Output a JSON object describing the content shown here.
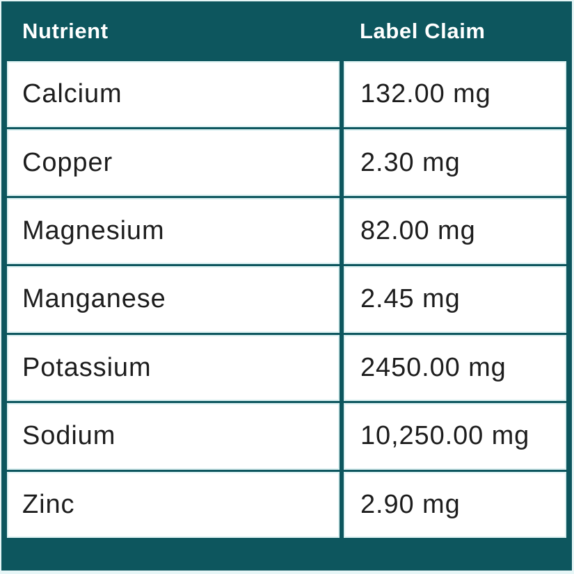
{
  "colors": {
    "teal": "#0d565e",
    "row_background": "#ffffff",
    "header_text": "#ffffff",
    "body_text": "#1d1d1d",
    "page_margin": "#e7f6f7",
    "cell_inner_highlight": "#dcf1f2"
  },
  "table": {
    "columns": [
      {
        "label": "Nutrient"
      },
      {
        "label": "Label Claim"
      }
    ],
    "rows": [
      {
        "nutrient": "Calcium",
        "claim": "132.00 mg"
      },
      {
        "nutrient": "Copper",
        "claim": "2.30 mg"
      },
      {
        "nutrient": "Magnesium",
        "claim": "82.00 mg"
      },
      {
        "nutrient": "Manganese",
        "claim": "2.45 mg"
      },
      {
        "nutrient": "Potassium",
        "claim": "2450.00 mg"
      },
      {
        "nutrient": "Sodium",
        "claim": "10,250.00 mg"
      },
      {
        "nutrient": "Zinc",
        "claim": "2.90 mg"
      }
    ]
  },
  "chart_data": {
    "type": "table",
    "title": "",
    "columns": [
      "Nutrient",
      "Label Claim"
    ],
    "rows": [
      [
        "Calcium",
        "132.00 mg"
      ],
      [
        "Copper",
        "2.30 mg"
      ],
      [
        "Magnesium",
        "82.00 mg"
      ],
      [
        "Manganese",
        "2.45 mg"
      ],
      [
        "Potassium",
        "2450.00 mg"
      ],
      [
        "Sodium",
        "10,250.00 mg"
      ],
      [
        "Zinc",
        "2.90 mg"
      ]
    ],
    "values_mg": [
      132.0,
      2.3,
      82.0,
      2.45,
      2450.0,
      10250.0,
      2.9
    ],
    "unit": "mg"
  }
}
